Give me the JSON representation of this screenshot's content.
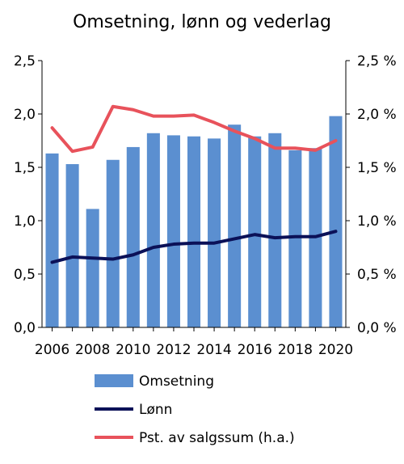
{
  "chart_data": {
    "type": "bar",
    "title": "Omsetning, lønn og vederlag",
    "x": [
      2006,
      2007,
      2008,
      2009,
      2010,
      2011,
      2012,
      2013,
      2014,
      2015,
      2016,
      2017,
      2018,
      2019,
      2020
    ],
    "x_tick_labels": [
      "2006",
      "2008",
      "2010",
      "2012",
      "2014",
      "2016",
      "2018",
      "2020"
    ],
    "y_left": {
      "ylim": [
        0,
        2.5
      ],
      "ticks": [
        0,
        0.5,
        1,
        1.5,
        2,
        2.5
      ],
      "tick_labels": [
        "0,0",
        "0,5",
        "1,0",
        "1,5",
        "2,0",
        "2,5"
      ]
    },
    "y_right": {
      "ylim": [
        0,
        2.5
      ],
      "ticks": [
        0,
        0.5,
        1,
        1.5,
        2,
        2.5
      ],
      "tick_labels": [
        "0,0 %",
        "0,5 %",
        "1,0 %",
        "1,5 %",
        "2,0 %",
        "2,5 %"
      ]
    },
    "series": [
      {
        "name": "Omsetning",
        "type": "bar",
        "axis": "left",
        "color": "#5b8fd0",
        "values": [
          1.63,
          1.53,
          1.11,
          1.57,
          1.69,
          1.82,
          1.8,
          1.79,
          1.77,
          1.9,
          1.79,
          1.82,
          1.66,
          1.68,
          1.98
        ]
      },
      {
        "name": "Lønn",
        "type": "line",
        "axis": "left",
        "color": "#0b1158",
        "values": [
          0.61,
          0.66,
          0.65,
          0.64,
          0.68,
          0.75,
          0.78,
          0.79,
          0.79,
          0.83,
          0.87,
          0.84,
          0.85,
          0.85,
          0.9
        ]
      },
      {
        "name": "Pst. av salgssum (h.a.)",
        "type": "line",
        "axis": "right",
        "color": "#e8525b",
        "values": [
          1.87,
          1.65,
          1.69,
          2.07,
          2.04,
          1.98,
          1.98,
          1.99,
          1.92,
          1.84,
          1.77,
          1.68,
          1.68,
          1.66,
          1.75
        ]
      }
    ],
    "grid": false,
    "legend_position": "bottom"
  }
}
